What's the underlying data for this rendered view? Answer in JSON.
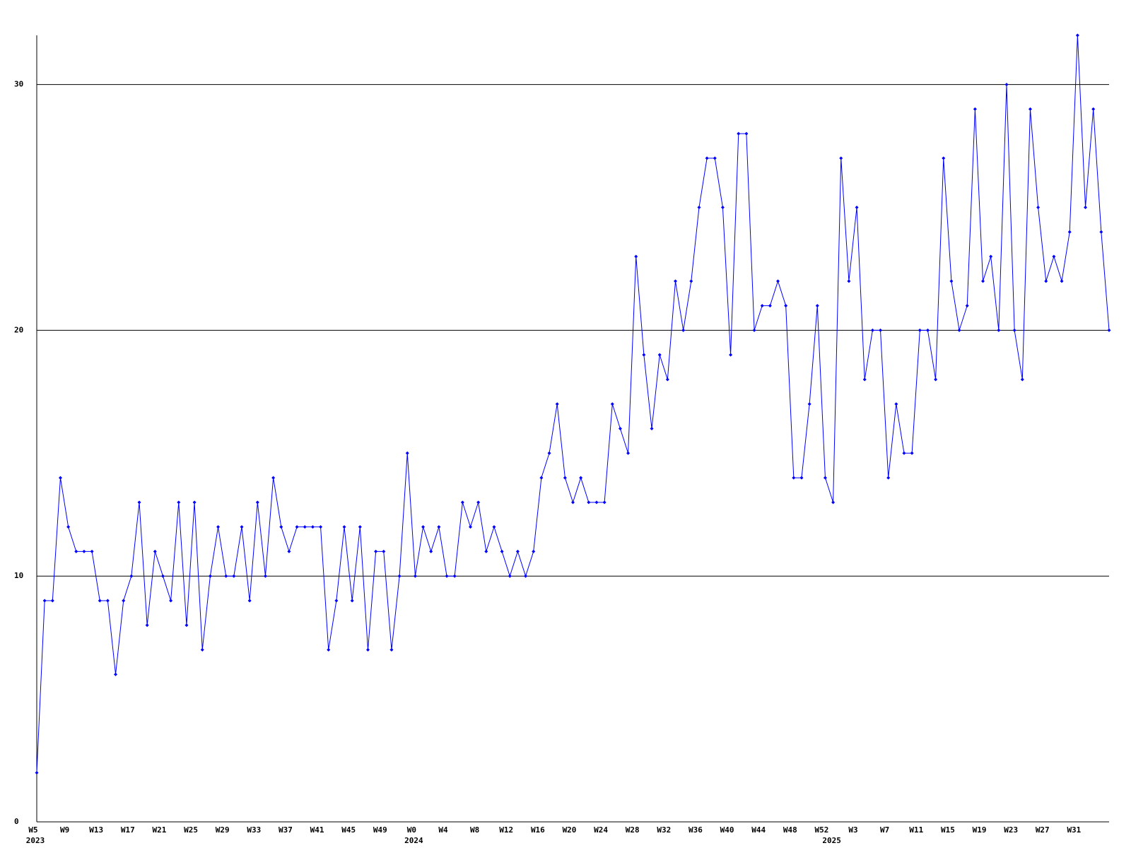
{
  "chart_data": {
    "type": "line",
    "categories": [
      "W5",
      null,
      null,
      null,
      "W9",
      null,
      null,
      null,
      "W13",
      null,
      null,
      null,
      "W17",
      null,
      null,
      null,
      "W21",
      null,
      null,
      null,
      "W25",
      null,
      null,
      null,
      "W29",
      null,
      null,
      null,
      "W33",
      null,
      null,
      null,
      "W37",
      null,
      null,
      null,
      "W41",
      null,
      null,
      null,
      "W45",
      null,
      null,
      null,
      "W49",
      null,
      null,
      null,
      "W0",
      null,
      null,
      null,
      "W4",
      null,
      null,
      null,
      "W8",
      null,
      null,
      null,
      "W12",
      null,
      null,
      null,
      "W16",
      null,
      null,
      null,
      "W20",
      null,
      null,
      null,
      "W24",
      null,
      null,
      null,
      "W28",
      null,
      null,
      null,
      "W32",
      null,
      null,
      null,
      "W36",
      null,
      null,
      null,
      "W40",
      null,
      null,
      null,
      "W44",
      null,
      null,
      null,
      "W48",
      null,
      null,
      null,
      "W52",
      null,
      null,
      null,
      "W3",
      null,
      null,
      null,
      "W7",
      null,
      null,
      null,
      "W11",
      null,
      null,
      null,
      "W15",
      null,
      null,
      null,
      "W19",
      null,
      null,
      null,
      "W23",
      null,
      null,
      null,
      "W27",
      null,
      null,
      null,
      "W31",
      null,
      null,
      null,
      null
    ],
    "year_labels": [
      "2023",
      null,
      null,
      null,
      null,
      null,
      null,
      null,
      null,
      null,
      null,
      null,
      null,
      null,
      null,
      null,
      null,
      null,
      null,
      null,
      null,
      null,
      null,
      null,
      null,
      null,
      null,
      null,
      null,
      null,
      null,
      null,
      null,
      null,
      null,
      null,
      null,
      null,
      null,
      null,
      null,
      null,
      null,
      null,
      null,
      null,
      null,
      null,
      "2024",
      null,
      null,
      null,
      null,
      null,
      null,
      null,
      null,
      null,
      null,
      null,
      null,
      null,
      null,
      null,
      null,
      null,
      null,
      null,
      null,
      null,
      null,
      null,
      null,
      null,
      null,
      null,
      null,
      null,
      null,
      null,
      null,
      null,
      null,
      null,
      null,
      null,
      null,
      null,
      null,
      null,
      null,
      null,
      null,
      null,
      null,
      null,
      null,
      null,
      null,
      null,
      null,
      "2025",
      null,
      null,
      null,
      null,
      null,
      null,
      null,
      null,
      null,
      null,
      null,
      null,
      null,
      null,
      null,
      null,
      null,
      null,
      null,
      null,
      null,
      null,
      null,
      null,
      null,
      null,
      null,
      null,
      null,
      null,
      null,
      null,
      null,
      null,
      null
    ],
    "series": [
      {
        "color": "#0000ff",
        "values": [
          2,
          9,
          9,
          14,
          12,
          11,
          11,
          11,
          9,
          9,
          6,
          9,
          10,
          13,
          8,
          11,
          10,
          9,
          13,
          8,
          13,
          7,
          10,
          12,
          10,
          10,
          12,
          9,
          13,
          10,
          14,
          12,
          11,
          12,
          12,
          12,
          12,
          7,
          9,
          12,
          9,
          12,
          7,
          11,
          11,
          7,
          10,
          15,
          10,
          12,
          11,
          12,
          10,
          10,
          13,
          12,
          13,
          11,
          12,
          11,
          10,
          11,
          10,
          11,
          14,
          15,
          17,
          14,
          13,
          14,
          13,
          13,
          13,
          17,
          16,
          15,
          23,
          19,
          16,
          19,
          18,
          22,
          20,
          22,
          25,
          27,
          27,
          25,
          19,
          28,
          28,
          20,
          21,
          21,
          22,
          21,
          14,
          14,
          17,
          21,
          14,
          13,
          27,
          22,
          25,
          18,
          20,
          20,
          14,
          17,
          15,
          15,
          20,
          20,
          18,
          27,
          22,
          20,
          21,
          29,
          22,
          23,
          20,
          30,
          20,
          18,
          29,
          25,
          22,
          23,
          22,
          24,
          32,
          25,
          29,
          24,
          20
        ]
      }
    ],
    "ylim": [
      0,
      32
    ],
    "yticks": [
      0,
      10,
      20,
      30
    ],
    "grid": true
  }
}
